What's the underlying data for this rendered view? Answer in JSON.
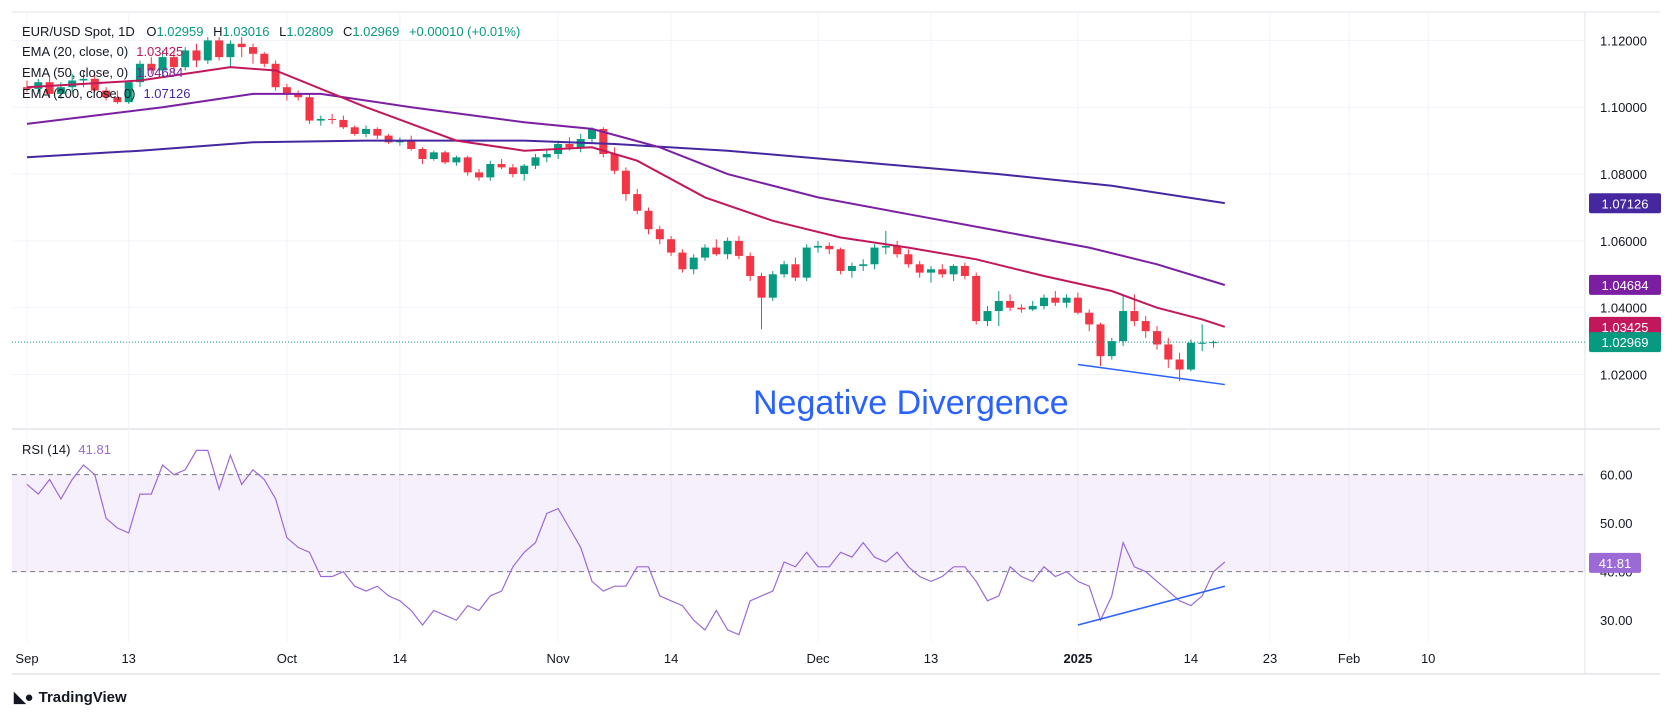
{
  "header": {
    "symbol": "EUR/USD Spot, 1D",
    "open_label": "O",
    "open": "1.02959",
    "high_label": "H",
    "high": "1.03016",
    "low_label": "L",
    "low": "1.02809",
    "close_label": "C",
    "close": "1.02969",
    "change": "+0.00010 (+0.01%)"
  },
  "indicators": {
    "ema20": {
      "label": "EMA (20, close, 0)",
      "value": "1.03425",
      "color": "#c2185b"
    },
    "ema50": {
      "label": "EMA (50, close, 0)",
      "value": "1.04684",
      "color": "#7b1fa2"
    },
    "ema200": {
      "label": "EMA (200, close, 0)",
      "value": "1.07126",
      "color": "#4527a0"
    },
    "rsi": {
      "label": "RSI (14)",
      "value": "41.81",
      "color": "#9c6ad6"
    }
  },
  "colors": {
    "up": "#089981",
    "down": "#f23645",
    "divergence": "#2962ff",
    "last_price": "#089981"
  },
  "annotation": "Negative Divergence",
  "branding": "TradingView",
  "chart_data": {
    "type": "candlestick",
    "x_ticks": [
      {
        "i": 0,
        "label": "Sep"
      },
      {
        "i": 9,
        "label": "13"
      },
      {
        "i": 23,
        "label": "Oct"
      },
      {
        "i": 33,
        "label": "14"
      },
      {
        "i": 47,
        "label": "Nov"
      },
      {
        "i": 57,
        "label": "14"
      },
      {
        "i": 70,
        "label": "Dec"
      },
      {
        "i": 80,
        "label": "13"
      },
      {
        "i": 93,
        "label": "2025"
      },
      {
        "i": 103,
        "label": "14"
      },
      {
        "i": 110,
        "label": "23"
      },
      {
        "i": 117,
        "label": "Feb"
      },
      {
        "i": 124,
        "label": "10"
      }
    ],
    "price_axis": {
      "ticks": [
        "1.12000",
        "1.10000",
        "1.08000",
        "1.06000",
        "1.04000",
        "1.02000"
      ],
      "range": [
        1.004,
        1.1285
      ]
    },
    "price_labels": [
      {
        "value": 1.07126,
        "text": "1.07126",
        "color": "#4527a0"
      },
      {
        "value": 1.04684,
        "text": "1.04684",
        "color": "#7b1fa2"
      },
      {
        "value": 1.03425,
        "text": "1.03425",
        "color": "#c2185b"
      },
      {
        "value": 1.02969,
        "text": "1.02969",
        "color": "#089981"
      }
    ],
    "rsi_axis": {
      "ticks": [
        "60.00",
        "50.00",
        "40.00",
        "30.00"
      ],
      "range": [
        25.5,
        65.5
      ],
      "band": [
        40,
        60
      ]
    },
    "ohlc": [
      [
        1.106,
        1.108,
        1.1045,
        1.1055
      ],
      [
        1.1055,
        1.1085,
        1.104,
        1.1075
      ],
      [
        1.1075,
        1.109,
        1.103,
        1.104
      ],
      [
        1.104,
        1.1075,
        1.1025,
        1.106
      ],
      [
        1.106,
        1.11,
        1.1045,
        1.108
      ],
      [
        1.108,
        1.111,
        1.106,
        1.1085
      ],
      [
        1.1085,
        1.11,
        1.1045,
        1.105
      ],
      [
        1.105,
        1.106,
        1.102,
        1.103
      ],
      [
        1.103,
        1.105,
        1.101,
        1.1015
      ],
      [
        1.1015,
        1.108,
        1.101,
        1.1075
      ],
      [
        1.1075,
        1.114,
        1.106,
        1.113
      ],
      [
        1.113,
        1.115,
        1.11,
        1.111
      ],
      [
        1.111,
        1.117,
        1.109,
        1.115
      ],
      [
        1.115,
        1.117,
        1.11,
        1.112
      ],
      [
        1.112,
        1.118,
        1.111,
        1.117
      ],
      [
        1.117,
        1.119,
        1.112,
        1.114
      ],
      [
        1.114,
        1.121,
        1.113,
        1.12
      ],
      [
        1.12,
        1.121,
        1.114,
        1.115
      ],
      [
        1.115,
        1.12,
        1.112,
        1.119
      ],
      [
        1.119,
        1.121,
        1.115,
        1.118
      ],
      [
        1.118,
        1.119,
        1.113,
        1.116
      ],
      [
        1.116,
        1.1165,
        1.112,
        1.113
      ],
      [
        1.113,
        1.114,
        1.105,
        1.106
      ],
      [
        1.106,
        1.107,
        1.102,
        1.104
      ],
      [
        1.104,
        1.105,
        1.102,
        1.103
      ],
      [
        1.103,
        1.104,
        1.095,
        1.096
      ],
      [
        1.096,
        1.0975,
        1.0945,
        1.0965
      ],
      [
        1.0965,
        1.098,
        1.095,
        1.0962
      ],
      [
        1.0962,
        1.0975,
        1.0935,
        1.094
      ],
      [
        1.094,
        1.0945,
        1.0915,
        1.092
      ],
      [
        1.092,
        1.0945,
        1.091,
        1.0935
      ],
      [
        1.0935,
        1.094,
        1.0905,
        1.0915
      ],
      [
        1.0915,
        1.092,
        1.089,
        1.0895
      ],
      [
        1.0895,
        1.091,
        1.0885,
        1.09
      ],
      [
        1.09,
        1.0915,
        1.087,
        1.0875
      ],
      [
        1.0875,
        1.088,
        1.083,
        1.0845
      ],
      [
        1.0845,
        1.087,
        1.084,
        1.0865
      ],
      [
        1.0865,
        1.087,
        1.083,
        1.0835
      ],
      [
        1.0835,
        1.0855,
        1.0825,
        1.085
      ],
      [
        1.085,
        1.0855,
        1.0795,
        1.0805
      ],
      [
        1.0805,
        1.0815,
        1.078,
        1.079
      ],
      [
        1.079,
        1.084,
        1.078,
        1.083
      ],
      [
        1.083,
        1.0845,
        1.0815,
        1.082
      ],
      [
        1.082,
        1.083,
        1.079,
        1.08
      ],
      [
        1.08,
        1.083,
        1.078,
        1.0825
      ],
      [
        1.0825,
        1.086,
        1.0815,
        1.085
      ],
      [
        1.085,
        1.0875,
        1.0835,
        1.086
      ],
      [
        1.086,
        1.09,
        1.0845,
        1.089
      ],
      [
        1.089,
        1.091,
        1.087,
        1.088
      ],
      [
        1.088,
        1.092,
        1.0865,
        1.0905
      ],
      [
        1.0905,
        1.094,
        1.0895,
        1.0935
      ],
      [
        1.0935,
        1.094,
        1.085,
        1.086
      ],
      [
        1.086,
        1.088,
        1.08,
        1.081
      ],
      [
        1.081,
        1.082,
        1.072,
        1.074
      ],
      [
        1.074,
        1.0755,
        1.068,
        1.069
      ],
      [
        1.069,
        1.07,
        1.062,
        1.0635
      ],
      [
        1.0635,
        1.0645,
        1.059,
        1.0605
      ],
      [
        1.0605,
        1.0615,
        1.0555,
        1.0565
      ],
      [
        1.0565,
        1.0575,
        1.0505,
        1.0515
      ],
      [
        1.0515,
        1.056,
        1.05,
        1.055
      ],
      [
        1.055,
        1.059,
        1.054,
        1.058
      ],
      [
        1.058,
        1.0605,
        1.0555,
        1.056
      ],
      [
        1.056,
        1.061,
        1.0545,
        1.06
      ],
      [
        1.06,
        1.0615,
        1.0545,
        1.0555
      ],
      [
        1.0555,
        1.0565,
        1.048,
        1.0495
      ],
      [
        1.0495,
        1.0505,
        1.0335,
        1.043
      ],
      [
        1.043,
        1.051,
        1.042,
        1.05
      ],
      [
        1.05,
        1.054,
        1.049,
        1.053
      ],
      [
        1.053,
        1.055,
        1.048,
        1.049
      ],
      [
        1.049,
        1.059,
        1.048,
        1.058
      ],
      [
        1.058,
        1.06,
        1.0565,
        1.0585
      ],
      [
        1.0585,
        1.0595,
        1.056,
        1.0575
      ],
      [
        1.0575,
        1.058,
        1.05,
        1.051
      ],
      [
        1.051,
        1.0535,
        1.049,
        1.0525
      ],
      [
        1.0525,
        1.0545,
        1.051,
        1.053
      ],
      [
        1.053,
        1.059,
        1.0515,
        1.058
      ],
      [
        1.058,
        1.063,
        1.056,
        1.0585
      ],
      [
        1.0585,
        1.06,
        1.055,
        1.056
      ],
      [
        1.056,
        1.0575,
        1.052,
        1.053
      ],
      [
        1.053,
        1.054,
        1.049,
        1.0505
      ],
      [
        1.0505,
        1.0525,
        1.0475,
        1.0515
      ],
      [
        1.0515,
        1.053,
        1.049,
        1.05
      ],
      [
        1.05,
        1.053,
        1.048,
        1.0525
      ],
      [
        1.0525,
        1.0535,
        1.0485,
        1.0495
      ],
      [
        1.0495,
        1.0505,
        1.035,
        1.036
      ],
      [
        1.036,
        1.0405,
        1.0345,
        1.039
      ],
      [
        1.039,
        1.045,
        1.0345,
        1.042
      ],
      [
        1.042,
        1.044,
        1.039,
        1.04
      ],
      [
        1.04,
        1.041,
        1.0385,
        1.0395
      ],
      [
        1.0395,
        1.042,
        1.039,
        1.0405
      ],
      [
        1.0405,
        1.044,
        1.0395,
        1.043
      ],
      [
        1.043,
        1.045,
        1.0405,
        1.0415
      ],
      [
        1.0415,
        1.044,
        1.04,
        1.043
      ],
      [
        1.043,
        1.0445,
        1.038,
        1.0385
      ],
      [
        1.0385,
        1.0395,
        1.033,
        1.035
      ],
      [
        1.035,
        1.0355,
        1.0225,
        1.0255
      ],
      [
        1.0255,
        1.031,
        1.0245,
        1.03
      ],
      [
        1.03,
        1.0435,
        1.0285,
        1.039
      ],
      [
        1.039,
        1.044,
        1.0345,
        1.036
      ],
      [
        1.036,
        1.0375,
        1.031,
        1.033
      ],
      [
        1.033,
        1.0345,
        1.0275,
        1.029
      ],
      [
        1.029,
        1.031,
        1.022,
        1.0245
      ],
      [
        1.0245,
        1.0265,
        1.018,
        1.0215
      ],
      [
        1.0215,
        1.0305,
        1.021,
        1.0295
      ],
      [
        1.0295,
        1.035,
        1.027,
        1.0295
      ],
      [
        1.0296,
        1.0302,
        1.0281,
        1.0297
      ]
    ],
    "ema20": [
      [
        0,
        1.106
      ],
      [
        10,
        1.108
      ],
      [
        18,
        1.112
      ],
      [
        22,
        1.111
      ],
      [
        30,
        1.1
      ],
      [
        38,
        1.09
      ],
      [
        44,
        1.087
      ],
      [
        50,
        1.088
      ],
      [
        54,
        1.084
      ],
      [
        60,
        1.073
      ],
      [
        66,
        1.066
      ],
      [
        72,
        1.061
      ],
      [
        78,
        1.058
      ],
      [
        84,
        1.0545
      ],
      [
        90,
        1.0495
      ],
      [
        96,
        1.045
      ],
      [
        100,
        1.04
      ],
      [
        104,
        1.0365
      ],
      [
        106,
        1.0343
      ]
    ],
    "ema50": [
      [
        0,
        1.095
      ],
      [
        12,
        1.1
      ],
      [
        20,
        1.104
      ],
      [
        26,
        1.104
      ],
      [
        34,
        1.1
      ],
      [
        44,
        1.0955
      ],
      [
        50,
        1.0935
      ],
      [
        56,
        1.088
      ],
      [
        62,
        1.08
      ],
      [
        70,
        1.073
      ],
      [
        78,
        1.068
      ],
      [
        86,
        1.063
      ],
      [
        94,
        1.058
      ],
      [
        100,
        1.053
      ],
      [
        106,
        1.0468
      ]
    ],
    "ema200": [
      [
        0,
        1.085
      ],
      [
        10,
        1.087
      ],
      [
        20,
        1.0895
      ],
      [
        30,
        1.09
      ],
      [
        44,
        1.09
      ],
      [
        52,
        1.089
      ],
      [
        62,
        1.087
      ],
      [
        74,
        1.0835
      ],
      [
        86,
        1.08
      ],
      [
        96,
        1.0765
      ],
      [
        106,
        1.0713
      ]
    ],
    "divergence_price": [
      [
        93,
        1.023
      ],
      [
        106,
        1.017
      ]
    ],
    "rsi": [
      58,
      56,
      59,
      55,
      59,
      62,
      60,
      51,
      49,
      48,
      56,
      56,
      62,
      60,
      61,
      65,
      65,
      57,
      64,
      58,
      61,
      59,
      55,
      47,
      45,
      44,
      39,
      39,
      40,
      37,
      36,
      37,
      35,
      34,
      32,
      29,
      32,
      31,
      30,
      33,
      32,
      35,
      36,
      41,
      44,
      46,
      52,
      53,
      49,
      45,
      38,
      36,
      37,
      37,
      41,
      41,
      35,
      34,
      33,
      30,
      28,
      32,
      28,
      27,
      34,
      35,
      36,
      42,
      41,
      44,
      41,
      41,
      44,
      43,
      46,
      43,
      42,
      44,
      41,
      39,
      38,
      39,
      41,
      41,
      38,
      34,
      35,
      41,
      39,
      38,
      41,
      39,
      40,
      38,
      37,
      30,
      35,
      46,
      41,
      40,
      38,
      36,
      34,
      33,
      35,
      40,
      42
    ],
    "rsi_last": 41.81,
    "divergence_rsi": [
      [
        93,
        29
      ],
      [
        106,
        37
      ]
    ]
  }
}
